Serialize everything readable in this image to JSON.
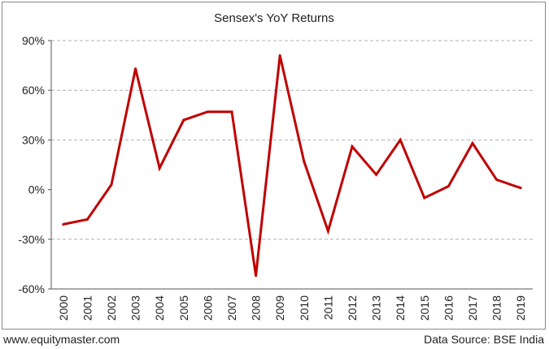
{
  "chart_data": {
    "type": "line",
    "title": "Sensex's YoY Returns",
    "xlabel": "",
    "ylabel": "",
    "x": [
      "2000",
      "2001",
      "2002",
      "2003",
      "2004",
      "2005",
      "2006",
      "2007",
      "2008",
      "2009",
      "2010",
      "2011",
      "2012",
      "2013",
      "2014",
      "2015",
      "2016",
      "2017",
      "2018",
      "2019"
    ],
    "series": [
      {
        "values": [
          -21,
          -18,
          3,
          73,
          13,
          42,
          47,
          47,
          -52,
          81,
          17,
          -25,
          26,
          9,
          30,
          -5,
          2,
          28,
          6,
          1
        ],
        "color": "#c00000"
      }
    ],
    "ylim": [
      -60,
      90
    ],
    "yticks": [
      -60,
      -30,
      0,
      30,
      60,
      90
    ],
    "ytick_labels": [
      "-60%",
      "-30%",
      "0%",
      "30%",
      "60%",
      "90%"
    ],
    "grid": "horizontal dashed",
    "legend": "none"
  },
  "footer": {
    "website": "www.equitymaster.com",
    "source": "Data Source: BSE India"
  }
}
